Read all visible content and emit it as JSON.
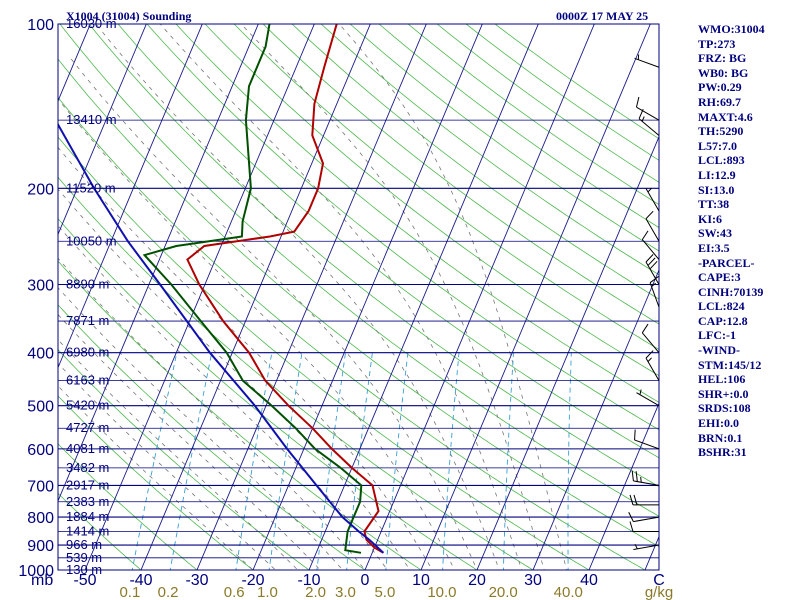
{
  "header": {
    "title": "X1004 (31004) Sounding",
    "time": "0000Z 17 MAY 25"
  },
  "indices": [
    "WMO:31004",
    "TP:273",
    "FRZ: BG",
    "WB0: BG",
    "PW:0.29",
    "RH:69.7",
    "MAXT:4.6",
    "TH:5290",
    "L57:7.0",
    "LCL:893",
    "LI:12.9",
    "SI:13.0",
    "TT:38",
    "KI:6",
    "SW:43",
    "EI:3.5",
    "-PARCEL-",
    "CAPE:3",
    "CINH:70139",
    "LCL:824",
    "CAP:12.8",
    "LFC:-1",
    "-WIND-",
    "STM:145/12",
    "HEL:106",
    "SHR+:0.0",
    "SRDS:108",
    "EHI:0.0",
    "BRN:0.1",
    "BSHR:31"
  ],
  "chart_data": {
    "type": "skew-t",
    "y_axis": {
      "scale": "log",
      "unit": "mb",
      "range": [
        1000,
        100
      ],
      "pressure_ticks": [
        1000,
        900,
        800,
        700,
        600,
        500,
        400,
        300,
        200,
        100
      ]
    },
    "x_axis": {
      "unit": "C",
      "range": [
        -50,
        50
      ],
      "temperature_ticks": [
        -50,
        -40,
        -30,
        -20,
        -10,
        0,
        10,
        20,
        30,
        40
      ]
    },
    "mixing_ratio_axis": {
      "unit": "g/kg",
      "ticks": [
        "0.1",
        "0.2",
        "0.6",
        "1.0",
        "2.0",
        "3.0",
        "5.0",
        "10.0",
        "20.0",
        "40.0"
      ]
    },
    "height_labels": [
      {
        "p": 1000,
        "label": "130 m"
      },
      {
        "p": 950,
        "label": "539 m"
      },
      {
        "p": 900,
        "label": "966 m"
      },
      {
        "p": 850,
        "label": "1414 m"
      },
      {
        "p": 800,
        "label": "1884 m"
      },
      {
        "p": 750,
        "label": "2383 m"
      },
      {
        "p": 700,
        "label": "2917 m"
      },
      {
        "p": 650,
        "label": "3482 m"
      },
      {
        "p": 600,
        "label": "4081 m"
      },
      {
        "p": 550,
        "label": "4727 m"
      },
      {
        "p": 500,
        "label": "5420 m"
      },
      {
        "p": 450,
        "label": "6163 m"
      },
      {
        "p": 400,
        "label": "6980 m"
      },
      {
        "p": 350,
        "label": "7871 m"
      },
      {
        "p": 300,
        "label": "8890 m"
      },
      {
        "p": 250,
        "label": "10050 m"
      },
      {
        "p": 200,
        "label": "11520 m"
      },
      {
        "p": 150,
        "label": "13410 m"
      },
      {
        "p": 100,
        "label": "16030 m"
      }
    ],
    "series": [
      {
        "key": "temperature",
        "color": "#b00000",
        "points": [
          {
            "p": 930,
            "t": 2
          },
          {
            "p": 910,
            "t": 0
          },
          {
            "p": 880,
            "t": -2
          },
          {
            "p": 850,
            "t": -3
          },
          {
            "p": 780,
            "t": -2
          },
          {
            "p": 700,
            "t": -5
          },
          {
            "p": 650,
            "t": -10
          },
          {
            "p": 600,
            "t": -15
          },
          {
            "p": 550,
            "t": -20
          },
          {
            "p": 500,
            "t": -26
          },
          {
            "p": 450,
            "t": -32
          },
          {
            "p": 400,
            "t": -37
          },
          {
            "p": 350,
            "t": -44
          },
          {
            "p": 300,
            "t": -51
          },
          {
            "p": 270,
            "t": -55
          },
          {
            "p": 255,
            "t": -53
          },
          {
            "p": 245,
            "t": -42
          },
          {
            "p": 240,
            "t": -38
          },
          {
            "p": 220,
            "t": -37
          },
          {
            "p": 200,
            "t": -37
          },
          {
            "p": 180,
            "t": -38
          },
          {
            "p": 160,
            "t": -42
          },
          {
            "p": 140,
            "t": -44
          },
          {
            "p": 120,
            "t": -45
          },
          {
            "p": 100,
            "t": -46
          }
        ]
      },
      {
        "key": "dewpoint",
        "color": "#005000",
        "points": [
          {
            "p": 930,
            "t": -2
          },
          {
            "p": 920,
            "t": -5
          },
          {
            "p": 850,
            "t": -6
          },
          {
            "p": 800,
            "t": -6
          },
          {
            "p": 750,
            "t": -6
          },
          {
            "p": 700,
            "t": -7
          },
          {
            "p": 650,
            "t": -12
          },
          {
            "p": 600,
            "t": -18
          },
          {
            "p": 550,
            "t": -23
          },
          {
            "p": 500,
            "t": -29
          },
          {
            "p": 450,
            "t": -36
          },
          {
            "p": 400,
            "t": -41
          },
          {
            "p": 350,
            "t": -48
          },
          {
            "p": 300,
            "t": -56
          },
          {
            "p": 265,
            "t": -63
          },
          {
            "p": 255,
            "t": -58
          },
          {
            "p": 245,
            "t": -47
          },
          {
            "p": 230,
            "t": -48
          },
          {
            "p": 200,
            "t": -49
          },
          {
            "p": 150,
            "t": -55
          },
          {
            "p": 130,
            "t": -57
          },
          {
            "p": 110,
            "t": -57
          },
          {
            "p": 100,
            "t": -58
          }
        ]
      },
      {
        "key": "parcel",
        "color": "#1010b0",
        "points": [
          {
            "p": 930,
            "t": 2
          },
          {
            "p": 880,
            "t": -1.5
          },
          {
            "p": 850,
            "t": -4
          },
          {
            "p": 800,
            "t": -8
          },
          {
            "p": 700,
            "t": -15
          },
          {
            "p": 600,
            "t": -23
          },
          {
            "p": 500,
            "t": -32
          },
          {
            "p": 400,
            "t": -44
          },
          {
            "p": 300,
            "t": -58
          },
          {
            "p": 250,
            "t": -67
          },
          {
            "p": 200,
            "t": -77
          },
          {
            "p": 150,
            "t": -89
          },
          {
            "p": 120,
            "t": -98
          },
          {
            "p": 110,
            "t": -101
          }
        ]
      }
    ],
    "wind_barbs": [
      {
        "p": 900,
        "dir": 260,
        "kt": 5
      },
      {
        "p": 850,
        "dir": 270,
        "kt": 10
      },
      {
        "p": 800,
        "dir": 260,
        "kt": 10
      },
      {
        "p": 760,
        "dir": 270,
        "kt": 20
      },
      {
        "p": 700,
        "dir": 280,
        "kt": 25
      },
      {
        "p": 600,
        "dir": 290,
        "kt": 10
      },
      {
        "p": 500,
        "dir": 300,
        "kt": 5
      },
      {
        "p": 450,
        "dir": 330,
        "kt": 15
      },
      {
        "p": 400,
        "dir": 320,
        "kt": 10
      },
      {
        "p": 330,
        "dir": 340,
        "kt": 15
      },
      {
        "p": 300,
        "dir": 330,
        "kt": 30
      },
      {
        "p": 270,
        "dir": 320,
        "kt": 10
      },
      {
        "p": 250,
        "dir": 330,
        "kt": 10
      },
      {
        "p": 220,
        "dir": 330,
        "kt": 5
      },
      {
        "p": 160,
        "dir": 310,
        "kt": 15
      },
      {
        "p": 150,
        "dir": 300,
        "kt": 10
      },
      {
        "p": 120,
        "dir": 290,
        "kt": 5
      }
    ]
  }
}
